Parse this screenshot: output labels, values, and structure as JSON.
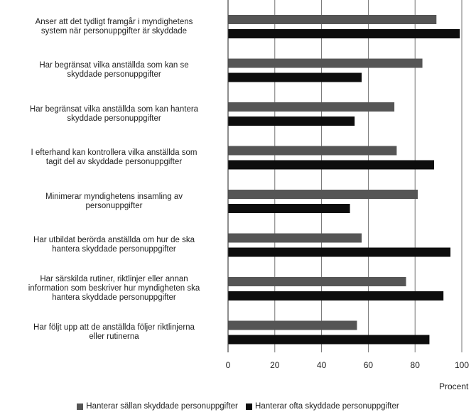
{
  "chart_data": {
    "type": "bar",
    "orientation": "horizontal",
    "categories": [
      "Anser att det tydligt framgår i myndighetens system när personuppgifter är skyddade",
      "Har begränsat vilka anställda som kan se skyddade personuppgifter",
      "Har begränsat vilka anställda som kan hantera skyddade personuppgifter",
      "I efterhand kan kontrollera vilka anställda som tagit del av skyddade personuppgifter",
      "Minimerar myndighetens insamling av personuppgifter",
      "Har utbildat berörda anställda om hur de ska hantera skyddade personuppgifter",
      "Har särskilda rutiner, riktlinjer eller annan information som beskriver hur myndigheten ska hantera skyddade personuppgifter",
      "Har följt upp att de anställda följer riktlinjerna eller rutinerna"
    ],
    "category_lines": [
      [
        "Anser att det tydligt framgår i myndighetens",
        "system när personuppgifter är skyddade"
      ],
      [
        "Har begränsat vilka anställda som kan se",
        "skyddade personuppgifter"
      ],
      [
        "Har begränsat vilka anställda som kan hantera",
        "skyddade personuppgifter"
      ],
      [
        "I efterhand kan kontrollera vilka anställda som",
        "tagit del av skyddade personuppgifter"
      ],
      [
        "Minimerar myndighetens insamling av",
        "personuppgifter"
      ],
      [
        "Har utbildat berörda anställda om hur de ska",
        "hantera skyddade personuppgifter"
      ],
      [
        "Har särskilda rutiner, riktlinjer eller annan",
        "information som beskriver hur myndigheten ska",
        "hantera skyddade personuppgifter"
      ],
      [
        "Har följt upp att de anställda följer riktlinjerna",
        "eller rutinerna"
      ]
    ],
    "series": [
      {
        "name": "Hanterar sällan skyddade personuppgifter",
        "color": "#555555",
        "values": [
          89,
          83,
          71,
          72,
          81,
          57,
          76,
          55
        ]
      },
      {
        "name": "Hanterar ofta skyddade personuppgifter",
        "color": "#0d0d0d",
        "values": [
          99,
          57,
          54,
          88,
          52,
          95,
          92,
          86
        ]
      }
    ],
    "xlim": [
      0,
      100
    ],
    "xticks": [
      0,
      20,
      40,
      60,
      80,
      100
    ],
    "xlabel": "Procent",
    "grid": true,
    "legend_position": "bottom"
  }
}
